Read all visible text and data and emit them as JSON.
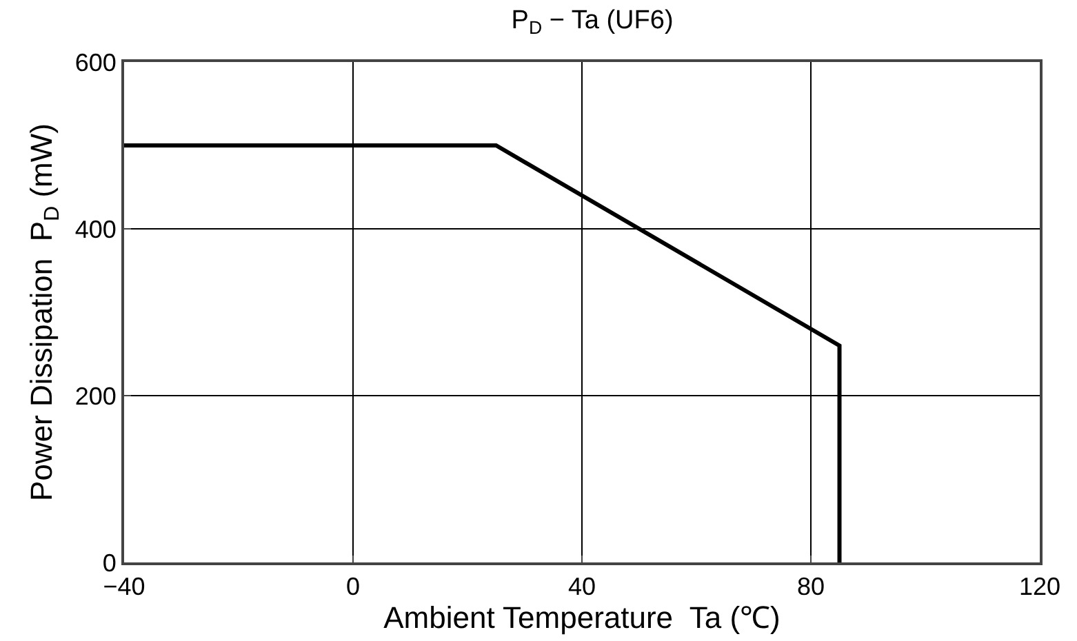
{
  "chart_data": {
    "type": "line",
    "title": "P$_{D}$ − Ta (UF6)",
    "xlabel": "Ambient Temperature  Ta (℃)",
    "ylabel": "Power Dissipation  P$_{D}$ (mW)",
    "x": [
      -40,
      25,
      85,
      85
    ],
    "series": [
      {
        "color": "#000000",
        "values": [
          500,
          500,
          260,
          0
        ]
      }
    ],
    "xlim": [
      -40,
      120
    ],
    "xticks": [
      -40,
      0,
      40,
      80,
      120
    ],
    "ylim": [
      0,
      600
    ],
    "yticks": [
      0,
      200,
      400,
      600
    ],
    "grid": true,
    "marker": "none",
    "line_style": "solid"
  }
}
